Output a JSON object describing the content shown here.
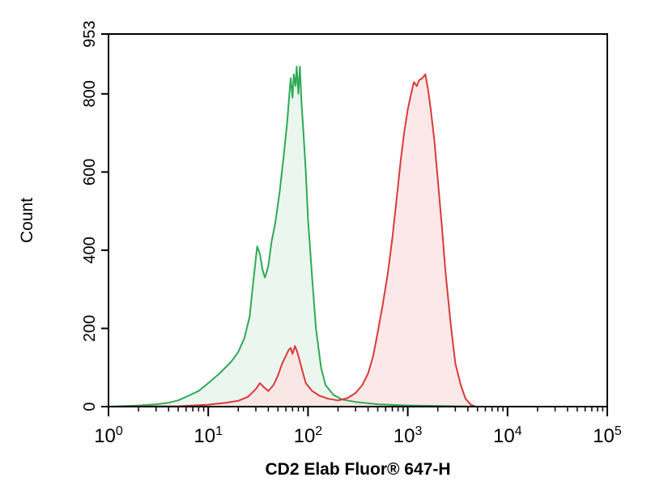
{
  "chart_data": {
    "type": "area",
    "title": "",
    "xlabel": "CD2 Elab Fluor® 647-H",
    "ylabel": "Count",
    "x_scale": "log",
    "xlim": [
      1,
      100000
    ],
    "ylim": [
      0,
      953
    ],
    "x_ticks": [
      {
        "base": "10",
        "exp": "0",
        "value": 1
      },
      {
        "base": "10",
        "exp": "1",
        "value": 10
      },
      {
        "base": "10",
        "exp": "2",
        "value": 100
      },
      {
        "base": "10",
        "exp": "3",
        "value": 1000
      },
      {
        "base": "10",
        "exp": "4",
        "value": 10000
      },
      {
        "base": "10",
        "exp": "5",
        "value": 100000
      }
    ],
    "y_ticks": [
      {
        "label": "0",
        "value": 0
      },
      {
        "label": "200",
        "value": 200
      },
      {
        "label": "400",
        "value": 400
      },
      {
        "label": "600",
        "value": 600
      },
      {
        "label": "800",
        "value": 800
      },
      {
        "label": "953",
        "value": 953
      }
    ],
    "grid": false,
    "legend": "none",
    "series": [
      {
        "color": "#2eaa55",
        "fill": "#e8f5ec",
        "points": [
          [
            1.0,
            0
          ],
          [
            2.0,
            3
          ],
          [
            3.0,
            6
          ],
          [
            4.0,
            10
          ],
          [
            5.0,
            16
          ],
          [
            6.0,
            25
          ],
          [
            8.0,
            40
          ],
          [
            10.0,
            60
          ],
          [
            13.0,
            85
          ],
          [
            17.0,
            115
          ],
          [
            20.0,
            140
          ],
          [
            23.0,
            175
          ],
          [
            26.0,
            230
          ],
          [
            28.0,
            310
          ],
          [
            30.0,
            380
          ],
          [
            31.0,
            410
          ],
          [
            33.0,
            390
          ],
          [
            35.0,
            350
          ],
          [
            37.0,
            330
          ],
          [
            40.0,
            360
          ],
          [
            43.0,
            420
          ],
          [
            47.0,
            470
          ],
          [
            52.0,
            550
          ],
          [
            57.0,
            640
          ],
          [
            62.0,
            730
          ],
          [
            65.0,
            800
          ],
          [
            67.0,
            840
          ],
          [
            70.0,
            790
          ],
          [
            72.0,
            850
          ],
          [
            75.0,
            820
          ],
          [
            77.0,
            870
          ],
          [
            80.0,
            800
          ],
          [
            83.0,
            870
          ],
          [
            86.0,
            780
          ],
          [
            90.0,
            700
          ],
          [
            95.0,
            600
          ],
          [
            100.0,
            480
          ],
          [
            110.0,
            330
          ],
          [
            120.0,
            200
          ],
          [
            135.0,
            100
          ],
          [
            150.0,
            55
          ],
          [
            180.0,
            30
          ],
          [
            220.0,
            18
          ],
          [
            300.0,
            12
          ],
          [
            500.0,
            6
          ],
          [
            1000.0,
            3
          ],
          [
            3000.0,
            1
          ],
          [
            5000.0,
            0
          ]
        ]
      },
      {
        "color": "#d93a3a",
        "fill": "#fbe4e4",
        "points": [
          [
            1.0,
            0
          ],
          [
            5.0,
            1
          ],
          [
            10.0,
            5
          ],
          [
            15.0,
            10
          ],
          [
            20.0,
            15
          ],
          [
            25.0,
            25
          ],
          [
            30.0,
            45
          ],
          [
            33.0,
            60
          ],
          [
            36.0,
            50
          ],
          [
            40.0,
            40
          ],
          [
            45.0,
            55
          ],
          [
            50.0,
            80
          ],
          [
            55.0,
            110
          ],
          [
            60.0,
            130
          ],
          [
            64.0,
            145
          ],
          [
            67.0,
            150
          ],
          [
            70.0,
            135
          ],
          [
            74.0,
            155
          ],
          [
            78.0,
            140
          ],
          [
            82.0,
            120
          ],
          [
            88.0,
            90
          ],
          [
            95.0,
            60
          ],
          [
            110.0,
            40
          ],
          [
            130.0,
            28
          ],
          [
            160.0,
            20
          ],
          [
            200.0,
            16
          ],
          [
            250.0,
            22
          ],
          [
            300.0,
            35
          ],
          [
            350.0,
            55
          ],
          [
            400.0,
            85
          ],
          [
            450.0,
            130
          ],
          [
            500.0,
            190
          ],
          [
            560.0,
            260
          ],
          [
            630.0,
            340
          ],
          [
            700.0,
            430
          ],
          [
            780.0,
            540
          ],
          [
            850.0,
            630
          ],
          [
            920.0,
            700
          ],
          [
            1000.0,
            760
          ],
          [
            1080.0,
            800
          ],
          [
            1150.0,
            830
          ],
          [
            1230.0,
            820
          ],
          [
            1300.0,
            835
          ],
          [
            1400.0,
            840
          ],
          [
            1500.0,
            850
          ],
          [
            1600.0,
            810
          ],
          [
            1700.0,
            760
          ],
          [
            1850.0,
            680
          ],
          [
            2000.0,
            580
          ],
          [
            2200.0,
            460
          ],
          [
            2400.0,
            340
          ],
          [
            2700.0,
            210
          ],
          [
            3000.0,
            110
          ],
          [
            3400.0,
            55
          ],
          [
            3800.0,
            20
          ],
          [
            4300.0,
            5
          ],
          [
            4800.0,
            0
          ]
        ]
      }
    ]
  }
}
